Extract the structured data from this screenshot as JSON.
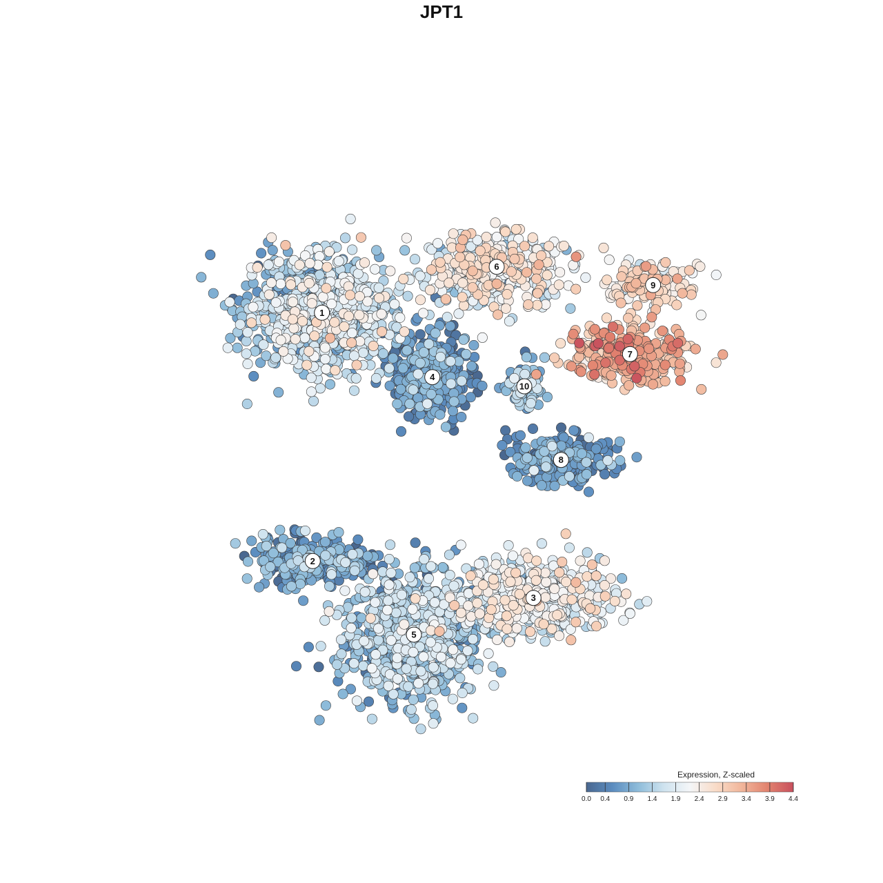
{
  "chart_data": {
    "type": "scatter",
    "title": "JPT1",
    "legend": {
      "title": "Expression, Z-scaled",
      "placement": "bottom-right",
      "ticks": [
        "0.0",
        "0.4",
        "0.9",
        "1.4",
        "1.9",
        "2.4",
        "2.9",
        "3.4",
        "3.9",
        "4.4"
      ],
      "range": [
        0,
        4.4
      ],
      "colors": [
        "#4a6890",
        "#5b8cbf",
        "#8ebcda",
        "#cfe3ef",
        "#f4f6f8",
        "#f9dcc8",
        "#f1b69b",
        "#e2836f",
        "#c8505d"
      ]
    },
    "clusters": [
      {
        "label": "1",
        "x": -2.6,
        "y": 2.8,
        "sx": 1.5,
        "sy": 1.2,
        "n": 760,
        "mean": 1.5,
        "sd": 0.55
      },
      {
        "label": "6",
        "x": 1.2,
        "y": 3.8,
        "sx": 1.5,
        "sy": 0.7,
        "n": 420,
        "mean": 2.1,
        "sd": 0.55
      },
      {
        "label": "9",
        "x": 4.6,
        "y": 3.4,
        "sx": 0.75,
        "sy": 0.4,
        "n": 150,
        "mean": 2.5,
        "sd": 0.45
      },
      {
        "label": "7",
        "x": 4.1,
        "y": 1.9,
        "sx": 1.2,
        "sy": 0.55,
        "n": 300,
        "mean": 3.1,
        "sd": 0.55
      },
      {
        "label": "4",
        "x": -0.2,
        "y": 1.4,
        "sx": 0.7,
        "sy": 0.8,
        "n": 420,
        "mean": 0.55,
        "sd": 0.4
      },
      {
        "label": "10",
        "x": 1.8,
        "y": 1.2,
        "sx": 0.35,
        "sy": 0.4,
        "n": 90,
        "mean": 1.0,
        "sd": 0.45
      },
      {
        "label": "8",
        "x": 2.6,
        "y": -0.4,
        "sx": 1.0,
        "sy": 0.45,
        "n": 260,
        "mean": 0.6,
        "sd": 0.45
      },
      {
        "label": "2",
        "x": -2.8,
        "y": -2.6,
        "sx": 1.2,
        "sy": 0.5,
        "n": 300,
        "mean": 0.7,
        "sd": 0.45
      },
      {
        "label": "3",
        "x": 2.0,
        "y": -3.4,
        "sx": 1.6,
        "sy": 0.7,
        "n": 560,
        "mean": 1.9,
        "sd": 0.5
      },
      {
        "label": "5",
        "x": -0.6,
        "y": -4.2,
        "sx": 1.4,
        "sy": 1.3,
        "n": 820,
        "mean": 1.2,
        "sd": 0.5
      }
    ],
    "xlim": [
      -7.5,
      7.5
    ],
    "ylim": [
      -7.5,
      7.5
    ],
    "grid": false,
    "axes_visible": false
  }
}
